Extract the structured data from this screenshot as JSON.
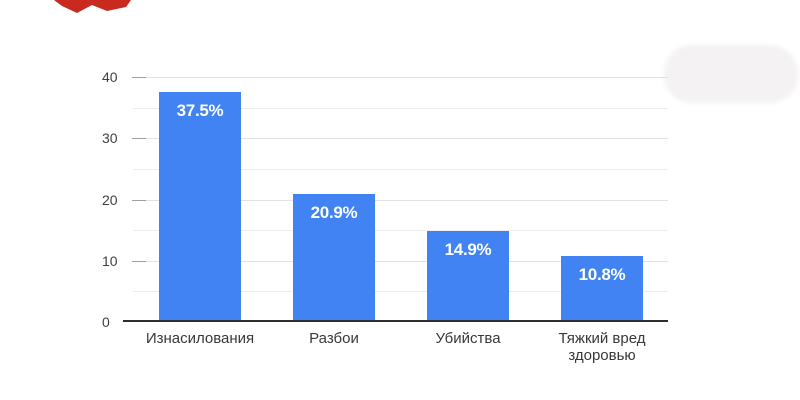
{
  "chart_data": {
    "type": "bar",
    "categories": [
      "Изнасилования",
      "Разбои",
      "Убийства",
      "Тяжкий вред здоровью"
    ],
    "values": [
      37.5,
      20.9,
      14.9,
      10.8
    ],
    "bar_labels": [
      "37.5%",
      "20.9%",
      "14.9%",
      "10.8%"
    ],
    "title": "",
    "xlabel": "",
    "ylabel": "",
    "ylim": [
      0,
      40
    ],
    "yticks": [
      0,
      10,
      20,
      30,
      40
    ],
    "ytick_labels": [
      "0",
      "10",
      "20",
      "30",
      "40"
    ],
    "minor_grid_step": 5,
    "grid": true,
    "legend": false
  },
  "colors": {
    "bar": "#4183f2",
    "bar_value_text": "#ffffff",
    "axis_line": "#2d2d2d",
    "major_grid": "#e2e2e2",
    "minor_grid": "#ededed",
    "tick_dash": "#a0a0a0",
    "tick_text": "#3f3f3f",
    "category_text": "#383838",
    "red_artifact": "#c9291f",
    "smudge": "rgba(205,196,196,0.22)"
  }
}
